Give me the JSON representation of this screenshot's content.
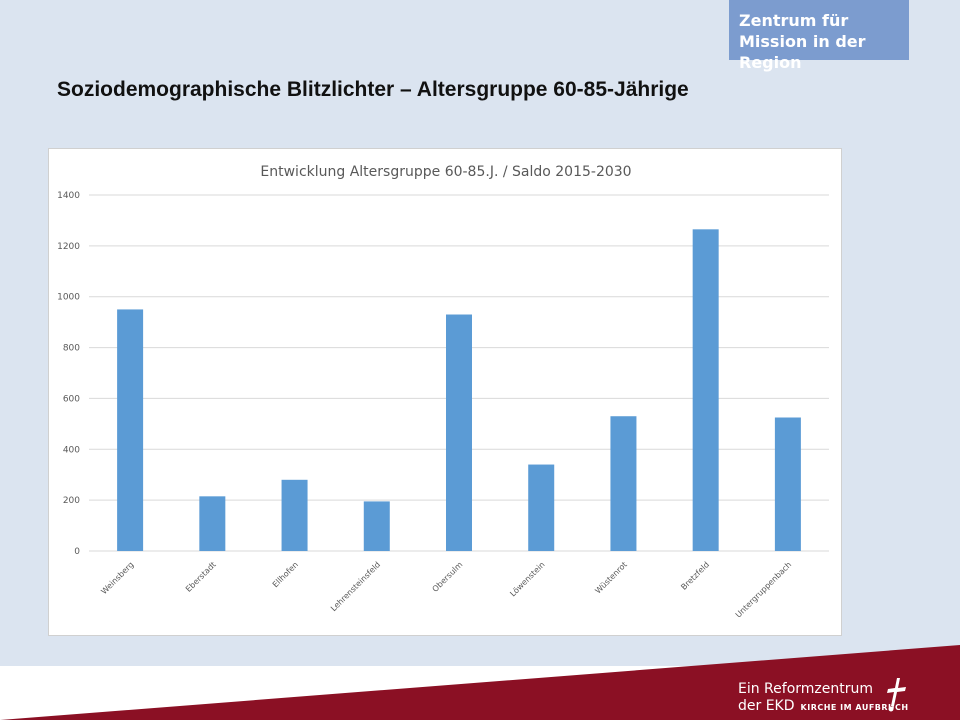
{
  "header": {
    "org_line1": "Zentrum für",
    "org_line2": "Mission in der Region",
    "slide_title": "Soziodemographische Blitzlichter – Altersgruppe 60-85-Jährige"
  },
  "chart_data": {
    "type": "bar",
    "title": "Entwicklung Altersgruppe 60-85.J. / Saldo 2015-2030",
    "xlabel": "",
    "ylabel": "",
    "ylim": [
      0,
      1400
    ],
    "yticks": [
      0,
      200,
      400,
      600,
      800,
      1000,
      1200,
      1400
    ],
    "grid": true,
    "categories": [
      "Weinsberg",
      "Eberstadt",
      "Ellhofen",
      "Lehrensteinsfeld",
      "Obersulm",
      "Löwenstein",
      "Wüstenrot",
      "Bretzfeld",
      "Untergruppenbach"
    ],
    "values": [
      950,
      215,
      280,
      195,
      930,
      340,
      530,
      1265,
      525
    ],
    "bar_color": "#5b9bd5"
  },
  "footer": {
    "line1": "Ein Reformzentrum",
    "line2_main": "der EKD",
    "line2_small": "KIRCHE IM AUFBRUCH",
    "band_color": "#8b1024"
  }
}
